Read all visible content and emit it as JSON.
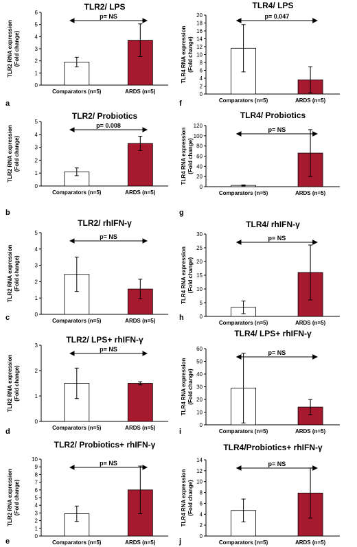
{
  "chart_data": [
    {
      "panel": "a",
      "type": "bar",
      "title": "TLR2/ LPS",
      "ylabel": [
        "TLR2 RNA expression",
        "(Fold change)"
      ],
      "categories": [
        "Comparators (n=5)",
        "ARDS (n=5)"
      ],
      "values": [
        1.9,
        3.7
      ],
      "errors": [
        0.4,
        1.35
      ],
      "ylim": [
        0,
        6
      ],
      "yticks": [
        0,
        1,
        2,
        3,
        4,
        5,
        6
      ],
      "annotation": "p= NS",
      "colors": [
        "#ffffff",
        "#a6192e"
      ]
    },
    {
      "panel": "f",
      "type": "bar",
      "title": "TLR4/ LPS",
      "ylabel": [
        "TLR4 RNA expression",
        "(Fold change)"
      ],
      "categories": [
        "Comparators (n=5)",
        "ARDS (n=5)"
      ],
      "values": [
        11.6,
        3.6
      ],
      "errors": [
        6.0,
        3.3
      ],
      "ylim": [
        0,
        20
      ],
      "yticks": [
        0,
        2,
        4,
        6,
        8,
        10,
        12,
        14,
        16,
        18,
        20
      ],
      "annotation": "p= 0.047",
      "colors": [
        "#ffffff",
        "#a6192e"
      ]
    },
    {
      "panel": "b",
      "type": "bar",
      "title": "TLR2/ Probiotics",
      "ylabel": [
        "TLR2 RNA expression",
        "(Fold change)"
      ],
      "categories": [
        "Comparators (n=5)",
        "ARDS (n=5)"
      ],
      "values": [
        1.1,
        3.3
      ],
      "errors": [
        0.3,
        0.55
      ],
      "ylim": [
        0,
        5
      ],
      "yticks": [
        0,
        1,
        2,
        3,
        4,
        5
      ],
      "annotation": "p= 0.008",
      "colors": [
        "#ffffff",
        "#a6192e"
      ]
    },
    {
      "panel": "g",
      "type": "bar",
      "title": "TLR4/ Probiotics",
      "ylabel": [
        "TLR4 RNA expression",
        "(Fold change)"
      ],
      "categories": [
        "Comparators (n=5)",
        "ARDS (n=5)"
      ],
      "values": [
        2.5,
        66
      ],
      "errors": [
        1.0,
        46
      ],
      "ylim": [
        0,
        120
      ],
      "yticks": [
        0,
        20,
        40,
        60,
        80,
        100,
        120
      ],
      "annotation": "p= NS",
      "colors": [
        "#ffffff",
        "#a6192e"
      ]
    },
    {
      "panel": "c",
      "type": "bar",
      "title": "TLR2/ rhIFN-γ",
      "ylabel": [
        "TLR2 RNA expression",
        "(Fold change)"
      ],
      "categories": [
        "Comparators (n=5)",
        "ARDS (n=5)"
      ],
      "values": [
        2.45,
        1.55
      ],
      "errors": [
        1.05,
        0.6
      ],
      "ylim": [
        0,
        5
      ],
      "yticks": [
        0,
        1,
        2,
        3,
        4,
        5
      ],
      "annotation": "p= NS",
      "colors": [
        "#ffffff",
        "#a6192e"
      ]
    },
    {
      "panel": "h",
      "type": "bar",
      "title": "TLR4/ rhIFN-γ",
      "ylabel": [
        "TLR4 RNA expression",
        "(Fold change)"
      ],
      "categories": [
        "Comparators (n=5)",
        "ARDS (n=5)"
      ],
      "values": [
        3.3,
        16
      ],
      "errors": [
        2.3,
        10
      ],
      "ylim": [
        0,
        30
      ],
      "yticks": [
        0,
        5,
        10,
        15,
        20,
        25,
        30
      ],
      "annotation": "p= NS",
      "colors": [
        "#ffffff",
        "#a6192e"
      ]
    },
    {
      "panel": "d",
      "type": "bar",
      "title": "TLR2/ LPS+ rhIFN-γ",
      "ylabel": [
        "TLR2 RNA expression",
        "(Fold change)"
      ],
      "categories": [
        "Comparators (n=5)",
        "ARDS (n=5)"
      ],
      "values": [
        1.5,
        1.5
      ],
      "errors": [
        0.6,
        0.06
      ],
      "ylim": [
        0,
        3
      ],
      "yticks": [
        0,
        1,
        2,
        3
      ],
      "annotation": "p= NS",
      "colors": [
        "#ffffff",
        "#a6192e"
      ]
    },
    {
      "panel": "i",
      "type": "bar",
      "title": "TLR4/ LPS+ rhIFN-γ",
      "ylabel": [
        "TLR4 RNA expression",
        "(Fold change)"
      ],
      "categories": [
        "Comparators (n=5)",
        "ARDS (n=5)"
      ],
      "values": [
        29,
        14
      ],
      "errors": [
        27.5,
        6
      ],
      "ylim": [
        0,
        60
      ],
      "yticks": [
        0,
        10,
        20,
        30,
        40,
        50,
        60
      ],
      "annotation": "p= NS",
      "colors": [
        "#ffffff",
        "#a6192e"
      ]
    },
    {
      "panel": "e",
      "type": "bar",
      "title": "TLR2/ Probiotics+ rhIFN-γ",
      "ylabel": [
        "TLR2 RNA expression",
        "(Fold change)"
      ],
      "categories": [
        "Comparators (n=5)",
        "ARDS (n=5)"
      ],
      "values": [
        2.9,
        6.0
      ],
      "errors": [
        1.0,
        3.1
      ],
      "ylim": [
        0,
        10
      ],
      "yticks": [
        0,
        1,
        2,
        3,
        4,
        5,
        6,
        7,
        8,
        9,
        10
      ],
      "annotation": "p= NS",
      "colors": [
        "#ffffff",
        "#a6192e"
      ]
    },
    {
      "panel": "j",
      "type": "bar",
      "title": "TLR4/Probiotics+ rhIFN-γ",
      "ylabel": [
        "TLR4 RNA expression",
        "(Fold change)"
      ],
      "categories": [
        "Comparators (n=5)",
        "ARDS (n=5)"
      ],
      "values": [
        4.7,
        7.9
      ],
      "errors": [
        2.1,
        4.6
      ],
      "ylim": [
        0,
        14
      ],
      "yticks": [
        0,
        2,
        4,
        6,
        8,
        10,
        12,
        14
      ],
      "annotation": "p= NS",
      "colors": [
        "#ffffff",
        "#a6192e"
      ]
    }
  ]
}
